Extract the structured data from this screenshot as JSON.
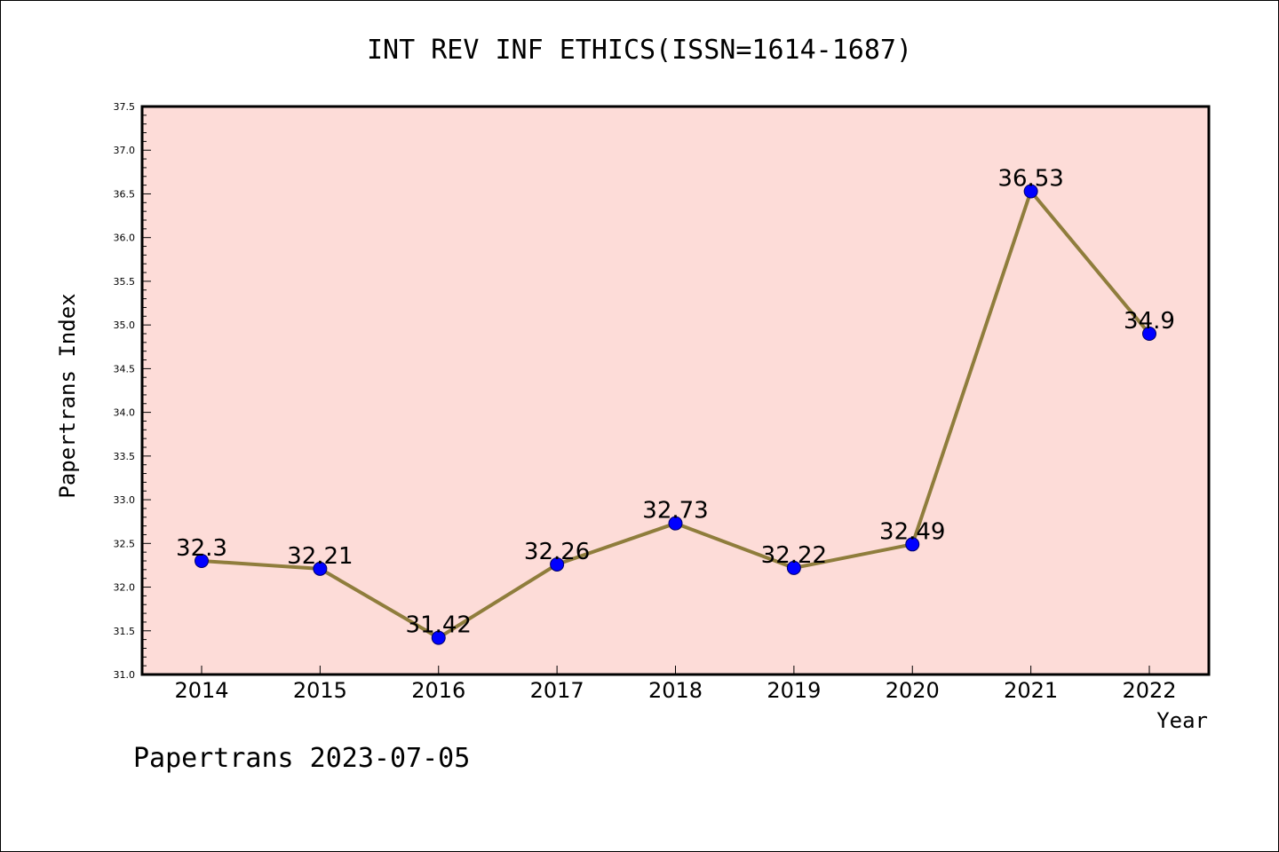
{
  "chart_data": {
    "type": "line",
    "title": "INT REV INF ETHICS(ISSN=1614-1687)",
    "xlabel": "Year",
    "ylabel": "Papertrans Index",
    "categories": [
      "2014",
      "2015",
      "2016",
      "2017",
      "2018",
      "2019",
      "2020",
      "2021",
      "2022"
    ],
    "values": [
      32.3,
      32.21,
      31.42,
      32.26,
      32.73,
      32.22,
      32.49,
      36.53,
      34.9
    ],
    "data_labels": [
      "32.3",
      "32.21",
      "31.42",
      "32.26",
      "32.73",
      "32.22",
      "32.49",
      "36.53",
      "34.9"
    ],
    "ylim": [
      31.0,
      37.5
    ],
    "yticks": [
      "31.0",
      "31.5",
      "32.0",
      "32.5",
      "33.0",
      "33.5",
      "34.0",
      "34.5",
      "35.0",
      "35.5",
      "36.0",
      "36.5",
      "37.0",
      "37.5"
    ],
    "grid": false,
    "colors": {
      "plot_background": "#fddcd8",
      "line": "#8f7d3c",
      "marker": "#0000ff"
    }
  },
  "footer": "Papertrans 2023-07-05"
}
